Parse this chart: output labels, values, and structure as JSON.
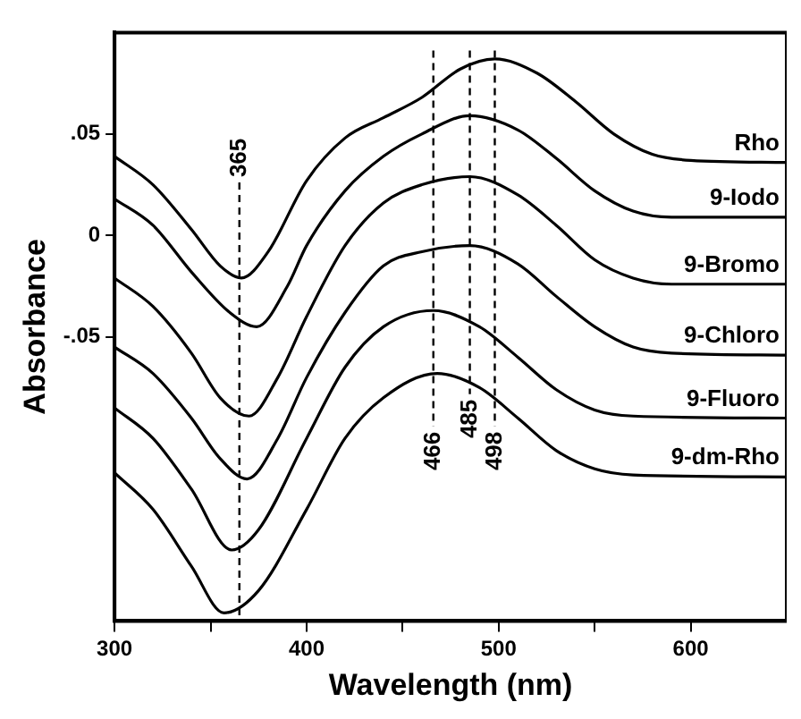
{
  "chart_data": {
    "type": "line",
    "xlabel": "Wavelength (nm)",
    "ylabel": "Absorbance",
    "xlim": [
      300,
      650
    ],
    "ylim": [
      -0.19,
      0.1
    ],
    "xticks": [
      300,
      {
        "value": 350,
        "label": null
      },
      400,
      {
        "value": 450,
        "label": null
      },
      500,
      {
        "value": 550,
        "label": null
      },
      600
    ],
    "yticks": [
      {
        "value": -0.05,
        "label": "-.05"
      },
      0,
      {
        "value": 0.05,
        "label": ".05"
      }
    ],
    "grid": false,
    "legend": false,
    "marker": "none",
    "line_style": "solid",
    "ref_lines": [
      {
        "axis": "x",
        "value": 365,
        "label": "365",
        "line_style": "dashed"
      },
      {
        "axis": "x",
        "value": 466,
        "label": "466",
        "line_style": "dashed"
      },
      {
        "axis": "x",
        "value": 485,
        "label": "485",
        "line_style": "dashed"
      },
      {
        "axis": "x",
        "value": 498,
        "label": "498",
        "line_style": "dashed"
      }
    ],
    "series": [
      {
        "name": "Rho",
        "color": "#000000",
        "x": [
          300,
          320,
          340,
          355,
          366,
          380,
          400,
          420,
          440,
          460,
          480,
          498,
          520,
          540,
          560,
          580,
          600,
          650
        ],
        "values": [
          0.039,
          0.025,
          0.003,
          -0.015,
          -0.021,
          -0.008,
          0.027,
          0.048,
          0.058,
          0.068,
          0.082,
          0.087,
          0.08,
          0.066,
          0.05,
          0.04,
          0.037,
          0.036
        ]
      },
      {
        "name": "9-Iodo",
        "color": "#000000",
        "x": [
          300,
          320,
          340,
          360,
          374,
          390,
          400,
          420,
          440,
          460,
          485,
          510,
          530,
          550,
          570,
          590,
          650
        ],
        "values": [
          0.018,
          0.005,
          -0.018,
          -0.038,
          -0.045,
          -0.025,
          -0.005,
          0.022,
          0.039,
          0.05,
          0.059,
          0.052,
          0.038,
          0.022,
          0.012,
          0.009,
          0.009
        ]
      },
      {
        "name": "9-Bromo",
        "color": "#000000",
        "x": [
          300,
          320,
          340,
          355,
          370,
          385,
          400,
          420,
          440,
          460,
          485,
          510,
          530,
          550,
          570,
          590,
          650
        ],
        "values": [
          -0.021,
          -0.035,
          -0.058,
          -0.08,
          -0.089,
          -0.07,
          -0.04,
          -0.005,
          0.016,
          0.025,
          0.029,
          0.02,
          0.005,
          -0.012,
          -0.021,
          -0.024,
          -0.024
        ]
      },
      {
        "name": "9-Chloro",
        "color": "#000000",
        "x": [
          300,
          320,
          340,
          355,
          369,
          385,
          400,
          420,
          440,
          460,
          485,
          510,
          530,
          550,
          570,
          590,
          650
        ],
        "values": [
          -0.055,
          -0.068,
          -0.09,
          -0.11,
          -0.12,
          -0.1,
          -0.07,
          -0.038,
          -0.015,
          -0.008,
          -0.005,
          -0.014,
          -0.03,
          -0.045,
          -0.055,
          -0.058,
          -0.059
        ]
      },
      {
        "name": "9-Fluoro",
        "color": "#000000",
        "x": [
          300,
          320,
          340,
          361,
          375,
          400,
          420,
          440,
          466,
          490,
          510,
          530,
          550,
          570,
          650
        ],
        "values": [
          -0.085,
          -0.1,
          -0.125,
          -0.155,
          -0.145,
          -0.1,
          -0.065,
          -0.045,
          -0.037,
          -0.045,
          -0.06,
          -0.076,
          -0.086,
          -0.089,
          -0.09
        ]
      },
      {
        "name": "9-dm-Rho",
        "color": "#000000",
        "x": [
          300,
          320,
          340,
          357,
          375,
          400,
          420,
          440,
          468,
          490,
          510,
          530,
          550,
          570,
          650
        ],
        "values": [
          -0.117,
          -0.135,
          -0.163,
          -0.186,
          -0.175,
          -0.135,
          -0.1,
          -0.08,
          -0.068,
          -0.075,
          -0.09,
          -0.106,
          -0.115,
          -0.118,
          -0.119
        ]
      }
    ]
  }
}
